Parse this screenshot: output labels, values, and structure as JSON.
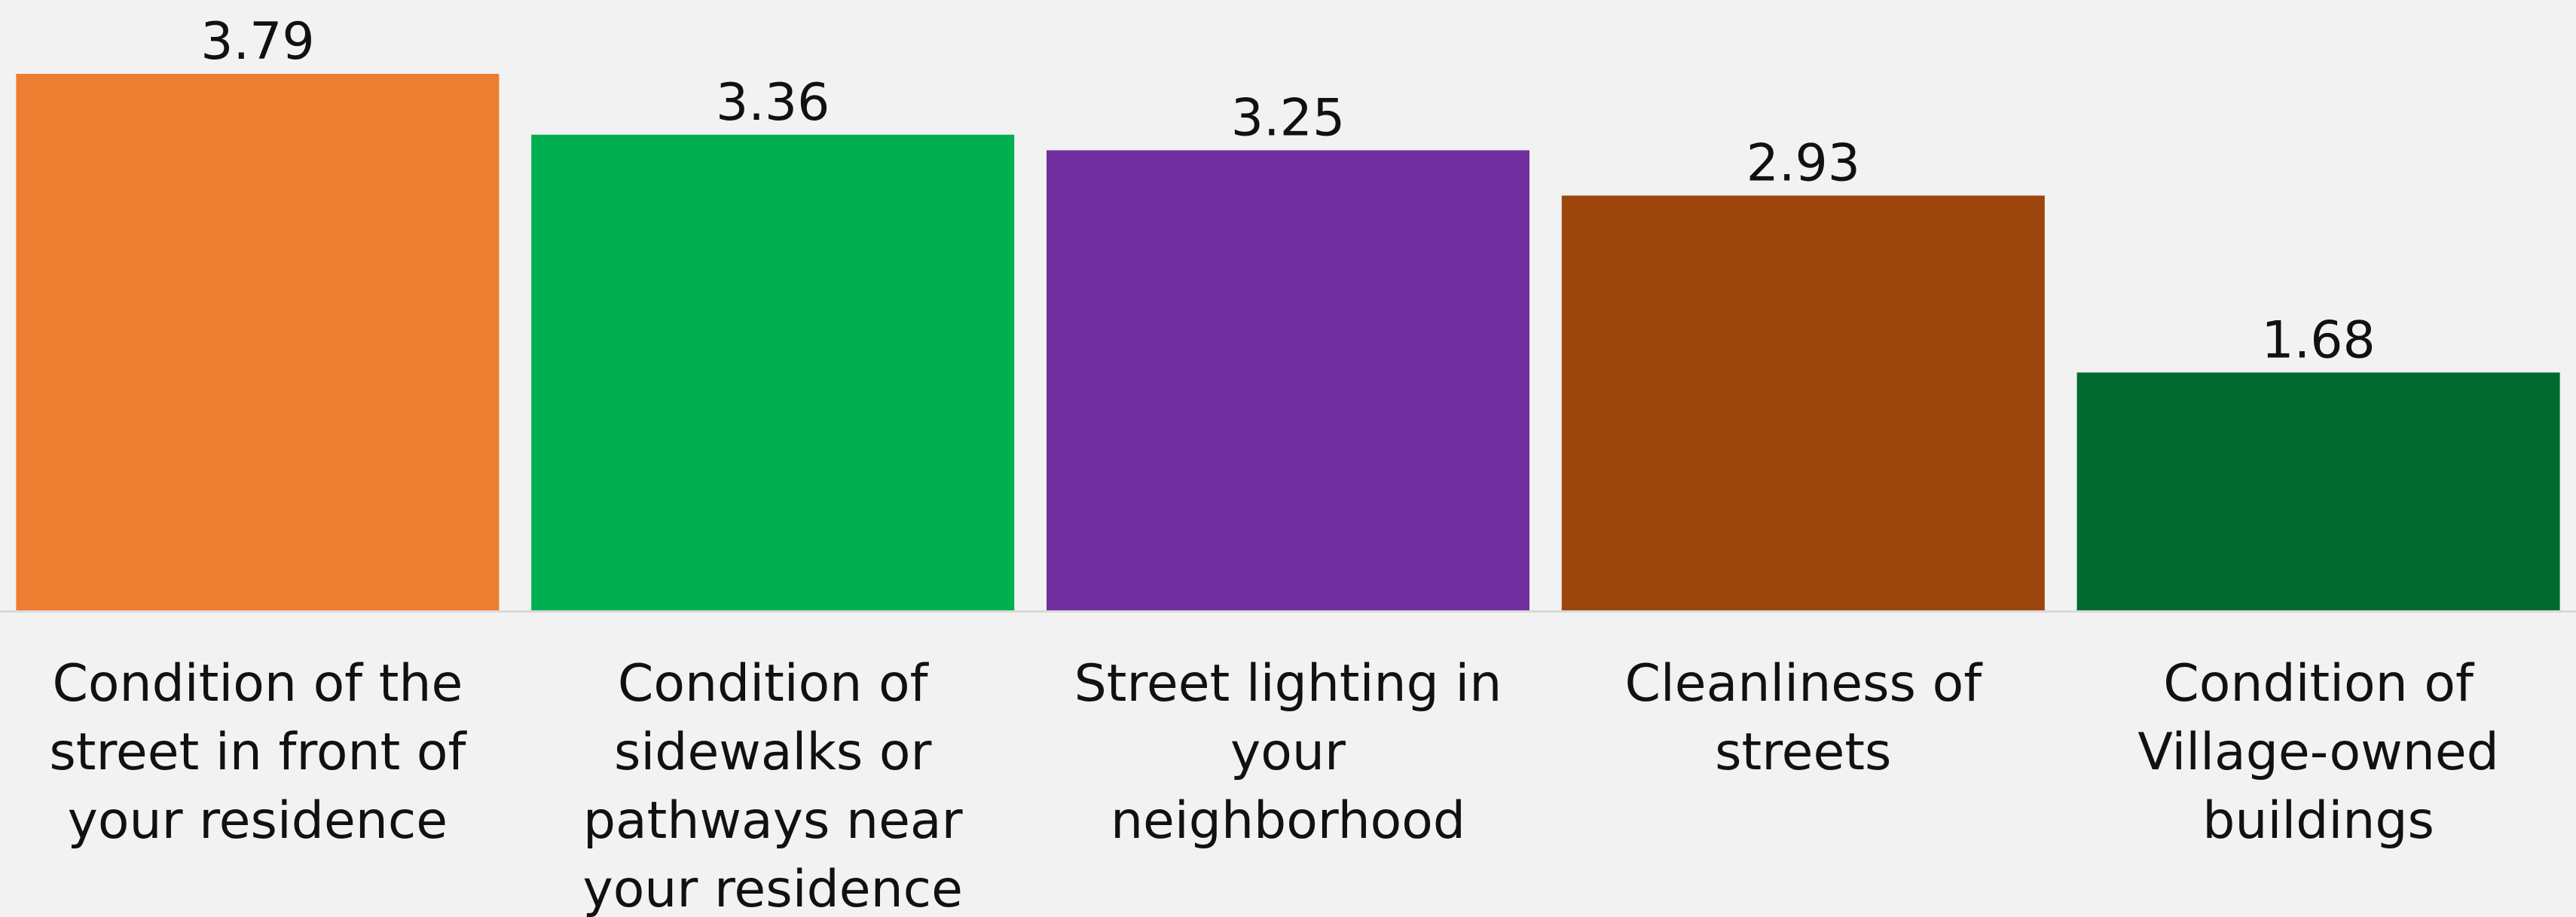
{
  "chart_data": {
    "type": "bar",
    "categories": [
      "Condition of the street in front of your residence",
      "Condition of sidewalks or pathways near your residence",
      "Street lighting in your neighborhood",
      "Cleanliness of streets",
      "Condition of Village-owned buildings"
    ],
    "category_lines": [
      [
        "Condition of the",
        "street in front of",
        "your residence"
      ],
      [
        "Condition of",
        "sidewalks or",
        "pathways near",
        "your residence"
      ],
      [
        "Street lighting in",
        "your",
        "neighborhood"
      ],
      [
        "Cleanliness of",
        "streets"
      ],
      [
        "Condition of",
        "Village-owned",
        "buildings"
      ]
    ],
    "values": [
      3.79,
      3.36,
      3.25,
      2.93,
      1.68
    ],
    "value_labels": [
      "3.79",
      "3.36",
      "3.25",
      "2.93",
      "1.68"
    ],
    "colors": [
      "#ED7D31",
      "#00B050",
      "#7030A0",
      "#9C450C",
      "#006A2F"
    ],
    "ylim": [
      0,
      3.79
    ],
    "grid": false,
    "legend": "none",
    "title": "",
    "xlabel": "",
    "ylabel": ""
  }
}
